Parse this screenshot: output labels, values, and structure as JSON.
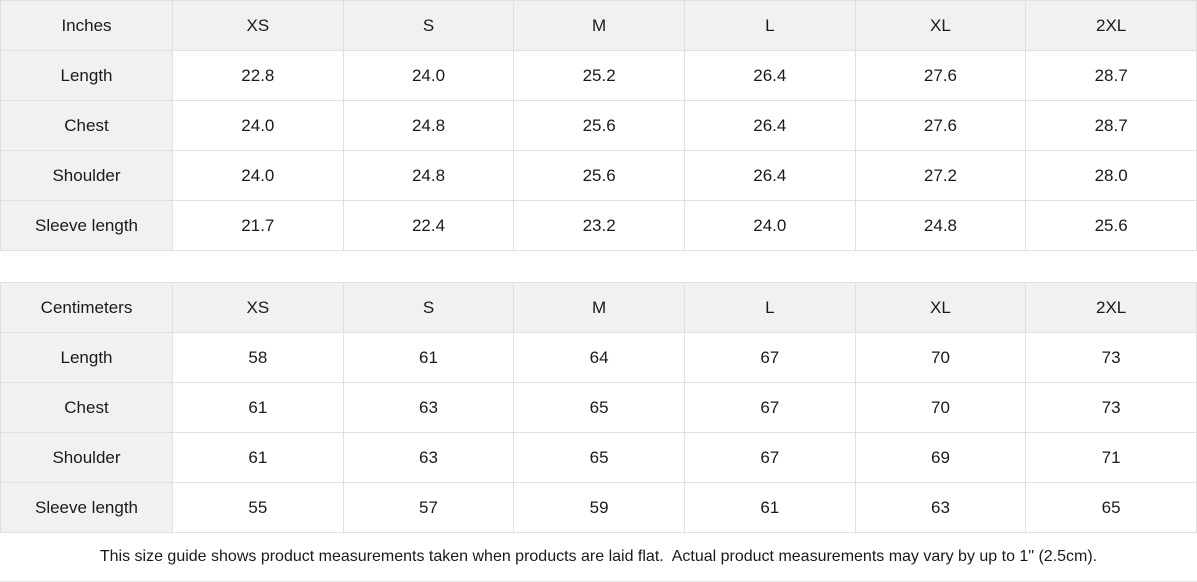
{
  "tables": [
    {
      "unit_label": "Inches",
      "columns": [
        "XS",
        "S",
        "M",
        "L",
        "XL",
        "2XL"
      ],
      "rows": [
        {
          "label": "Length",
          "values": [
            "22.8",
            "24.0",
            "25.2",
            "26.4",
            "27.6",
            "28.7"
          ]
        },
        {
          "label": "Chest",
          "values": [
            "24.0",
            "24.8",
            "25.6",
            "26.4",
            "27.6",
            "28.7"
          ]
        },
        {
          "label": "Shoulder",
          "values": [
            "24.0",
            "24.8",
            "25.6",
            "26.4",
            "27.2",
            "28.0"
          ]
        },
        {
          "label": "Sleeve length",
          "values": [
            "21.7",
            "22.4",
            "23.2",
            "24.0",
            "24.8",
            "25.6"
          ]
        }
      ]
    },
    {
      "unit_label": "Centimeters",
      "columns": [
        "XS",
        "S",
        "M",
        "L",
        "XL",
        "2XL"
      ],
      "rows": [
        {
          "label": "Length",
          "values": [
            "58",
            "61",
            "64",
            "67",
            "70",
            "73"
          ]
        },
        {
          "label": "Chest",
          "values": [
            "61",
            "63",
            "65",
            "67",
            "70",
            "73"
          ]
        },
        {
          "label": "Shoulder",
          "values": [
            "61",
            "63",
            "65",
            "67",
            "69",
            "71"
          ]
        },
        {
          "label": "Sleeve length",
          "values": [
            "55",
            "57",
            "59",
            "61",
            "63",
            "65"
          ]
        }
      ]
    }
  ],
  "footer": {
    "note": "This size guide shows product measurements taken when products are laid flat.  Actual product measurements may vary by up to 1\" (2.5cm)."
  },
  "colors": {
    "header_bg": "#f1f1f1",
    "border": "#e0e0e0",
    "text": "#1a1a1a"
  }
}
